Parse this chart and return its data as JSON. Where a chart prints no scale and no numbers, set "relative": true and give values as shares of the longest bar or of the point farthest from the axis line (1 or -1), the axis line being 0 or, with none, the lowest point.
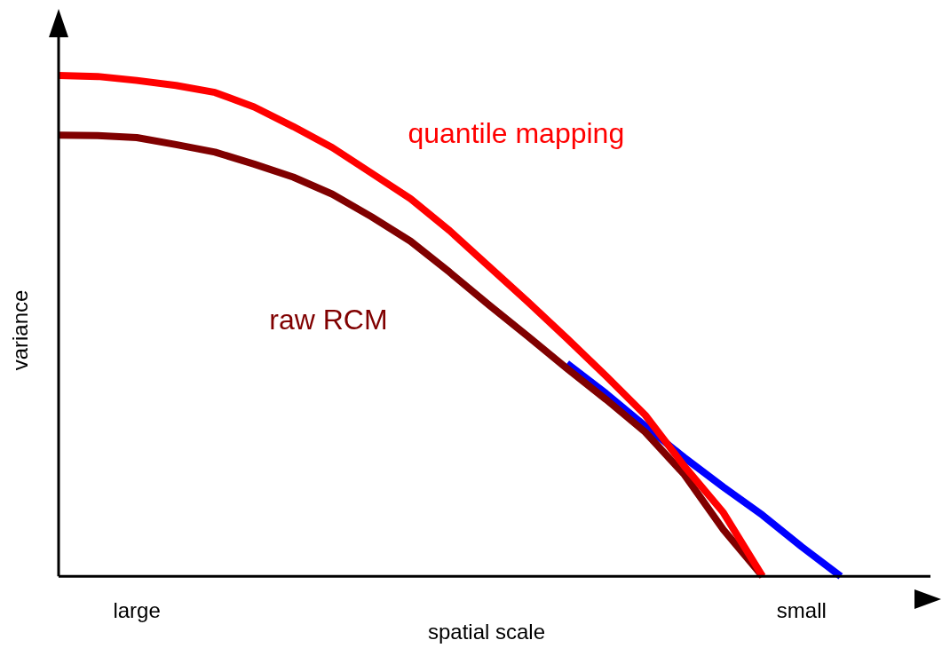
{
  "chart_data": {
    "type": "line",
    "relative": true,
    "xlabel": "spatial scale",
    "ylabel": "variance",
    "grid": false,
    "legend": false,
    "marker": "none",
    "line_style": "solid",
    "categories": [
      null,
      null,
      "large",
      null,
      null,
      null,
      null,
      null,
      null,
      null,
      null,
      null,
      null,
      null,
      null,
      null,
      null,
      null,
      null,
      "small",
      null,
      null,
      null
    ],
    "series": [
      {
        "color": "#0000ff",
        "values": [
          null,
          null,
          null,
          null,
          null,
          null,
          null,
          null,
          null,
          null,
          null,
          null,
          null,
          0.425,
          0.365,
          0.3,
          0.237,
          0.178,
          0.122,
          0.059,
          0,
          null,
          null
        ]
      },
      {
        "name": "raw RCM",
        "color": "#800000",
        "values": [
          0.881,
          0.88,
          0.876,
          0.862,
          0.847,
          0.823,
          0.797,
          0.763,
          0.718,
          0.669,
          0.607,
          0.542,
          0.479,
          0.415,
          0.353,
          0.288,
          0.203,
          0.093,
          0,
          null,
          null,
          null,
          null
        ]
      },
      {
        "name": "quantile mapping",
        "color": "#ff0000",
        "values": [
          1,
          0.998,
          0.99,
          0.98,
          0.966,
          0.937,
          0.898,
          0.856,
          0.805,
          0.754,
          0.69,
          0.619,
          0.548,
          0.475,
          0.4,
          0.322,
          0.22,
          0.127,
          0,
          null,
          null,
          null,
          null
        ]
      }
    ]
  }
}
